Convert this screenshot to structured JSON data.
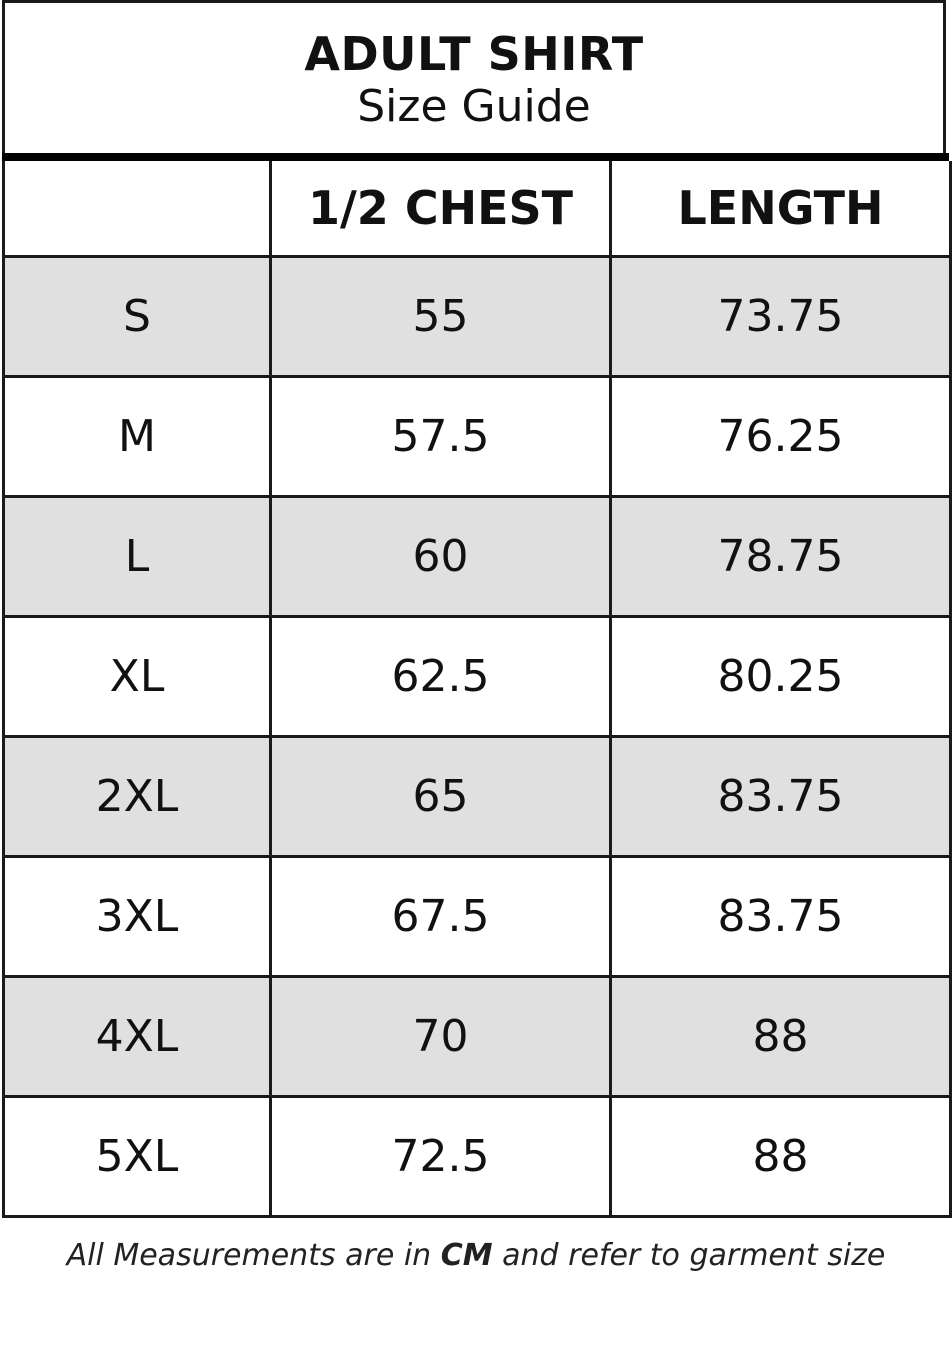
{
  "title": "ADULT SHIRT",
  "subtitle": "Size Guide",
  "columns": [
    "",
    "1/2 CHEST",
    "LENGTH"
  ],
  "rows": [
    {
      "size": "S",
      "chest": "55",
      "length": "73.75"
    },
    {
      "size": "M",
      "chest": "57.5",
      "length": "76.25"
    },
    {
      "size": "L",
      "chest": "60",
      "length": "78.75"
    },
    {
      "size": "XL",
      "chest": "62.5",
      "length": "80.25"
    },
    {
      "size": "2XL",
      "chest": "65",
      "length": "83.75"
    },
    {
      "size": "3XL",
      "chest": "67.5",
      "length": "83.75"
    },
    {
      "size": "4XL",
      "chest": "70",
      "length": "88"
    },
    {
      "size": "5XL",
      "chest": "72.5",
      "length": "88"
    }
  ],
  "footer": {
    "before": "All Measurements are in ",
    "unit": "CM",
    "after": " and refer to garment size"
  },
  "colors": {
    "stripe": "#dfe0df",
    "border": "#1a1a1a"
  }
}
